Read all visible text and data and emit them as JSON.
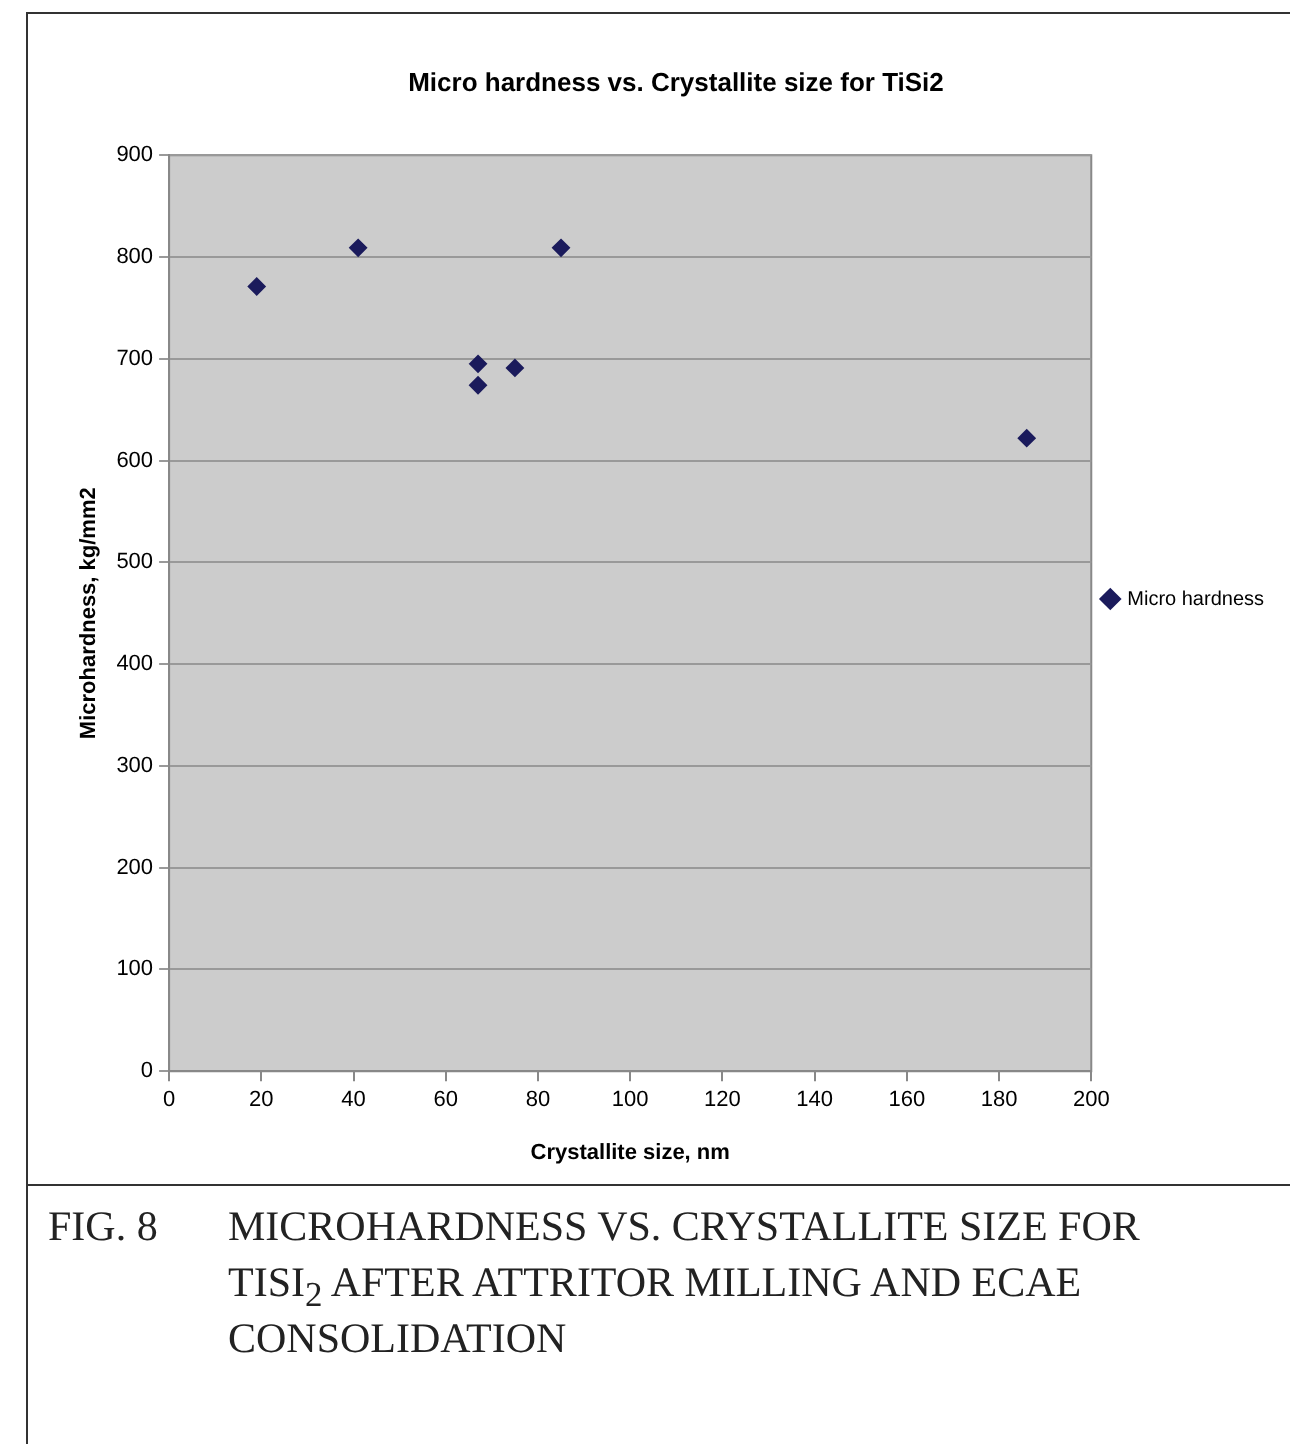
{
  "chart_data": {
    "type": "scatter",
    "title": "Micro hardness vs. Crystallite size for TiSi2",
    "xlabel": "Crystallite size, nm",
    "ylabel": "Microhardness, kg/mm2",
    "series": [
      {
        "name": "Micro hardness",
        "color": "#1b1b5c",
        "x": [
          19,
          41,
          67,
          67,
          75,
          85,
          186
        ],
        "values": [
          771,
          809,
          695,
          674,
          691,
          809,
          622
        ]
      }
    ],
    "xlim": [
      0,
      200
    ],
    "xticks": [
      0,
      20,
      40,
      60,
      80,
      100,
      120,
      140,
      160,
      180,
      200
    ],
    "ylim": [
      0,
      900
    ],
    "yticks": [
      0,
      100,
      200,
      300,
      400,
      500,
      600,
      700,
      800,
      900
    ],
    "grid": "y",
    "legend": "right",
    "marker": "diamond",
    "annotations": [
      "FIG. 8\tMICROHARDNESS VS. CRYSTALLITE SIZE FOR TISI$_{2}$ AFTER ATTRITOR MILLING AND ECAE CONSOLIDATION"
    ]
  }
}
